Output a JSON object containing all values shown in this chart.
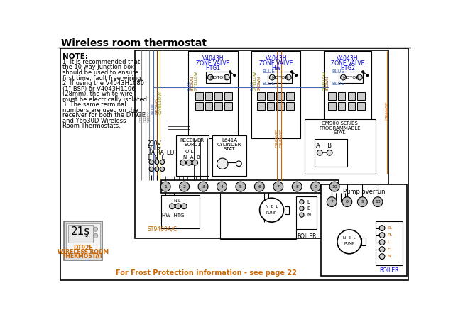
{
  "title": "Wireless room thermostat",
  "bg_color": "#ffffff",
  "note_title": "NOTE:",
  "note_lines": [
    "1. It is recommended that",
    "the 10 way junction box",
    "should be used to ensure",
    "first time, fault free wiring.",
    "2. If using the V4043H1080",
    "(1\" BSP) or V4043H1106",
    "(28mm), the white wire",
    "must be electrically isolated.",
    "3. The same terminal",
    "numbers are used on the",
    "receiver for both the DT92E",
    "and Y6630D Wireless",
    "Room Thermostats."
  ],
  "valve1_label": [
    "V4043H",
    "ZONE VALVE",
    "HTG1"
  ],
  "valve2_label": [
    "V4043H",
    "ZONE VALVE",
    "HW"
  ],
  "valve3_label": [
    "V4043H",
    "ZONE VALVE",
    "HTG2"
  ],
  "pump_overrun_label": "Pump overrun",
  "frost_label": "For Frost Protection information - see page 22",
  "dt92e_label": [
    "DT92E",
    "WIRELESS ROOM",
    "THERMOSTAT"
  ],
  "power_label": [
    "230V",
    "50Hz",
    "3A RATED"
  ],
  "receiver_label": [
    "RECEIVER",
    "BOR01"
  ],
  "l641a_label": [
    "L641A",
    "CYLINDER",
    "STAT."
  ],
  "cm900_label": [
    "CM900 SERIES",
    "PROGRAMMABLE",
    "STAT."
  ],
  "st9400_label": "ST9400A/C",
  "hwhtg_label": "HW HTG",
  "boiler_label": "BOILER",
  "blue_color": "#4466bb",
  "orange_color": "#cc6600",
  "brown_color": "#884400",
  "grey_color": "#888888",
  "gyellow_color": "#888800",
  "text_blue": "#0000cc",
  "text_orange": "#cc6600"
}
